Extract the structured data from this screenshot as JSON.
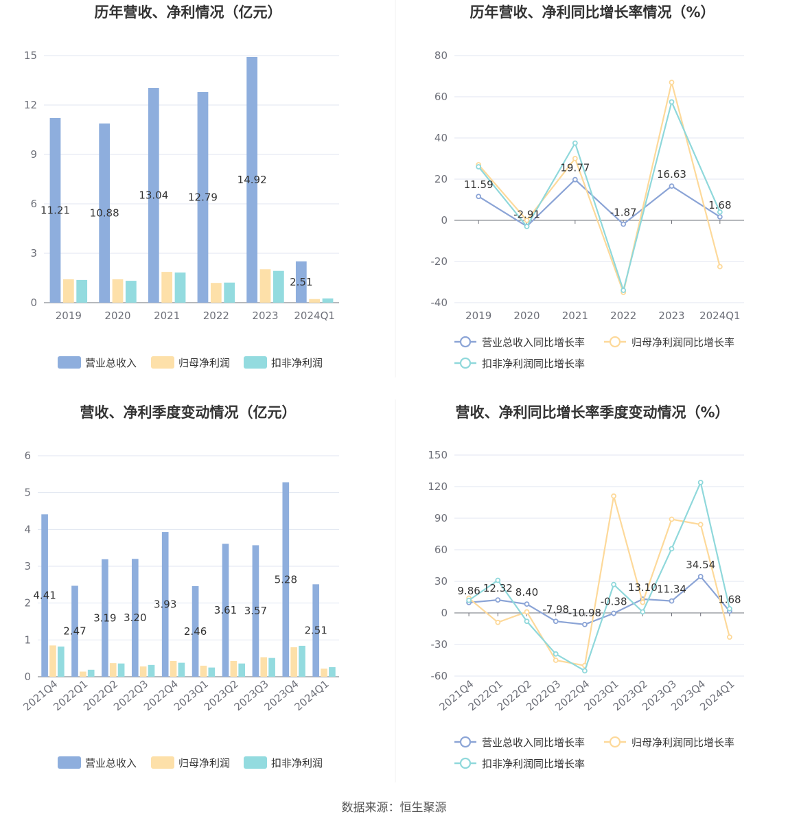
{
  "colors": {
    "revenue": "#8eaedd",
    "netprofit": "#fde0a9",
    "deducted": "#93dbdf",
    "revenue_line": "#8ba4d6",
    "netprofit_line": "#fdd99a",
    "deducted_line": "#8fd8db",
    "grid": "#e0e6f1",
    "axis": "#6e7079"
  },
  "source": "数据来源：恒生聚源",
  "chart_data": [
    {
      "type": "bar",
      "title": "历年营收、净利情况（亿元）",
      "categories": [
        "2019",
        "2020",
        "2021",
        "2022",
        "2023",
        "2024Q1"
      ],
      "ylim": [
        0,
        15
      ],
      "yticks": [
        0,
        3,
        6,
        9,
        12,
        15
      ],
      "grid": true,
      "legend_position": "bottom",
      "series": [
        {
          "name": "营业总收入",
          "values": [
            11.21,
            10.88,
            13.04,
            12.79,
            14.92,
            2.51
          ],
          "labels": [
            "11.21",
            "10.88",
            "13.04",
            "12.79",
            "14.92",
            "2.51"
          ]
        },
        {
          "name": "归母净利润",
          "values": [
            1.42,
            1.42,
            1.87,
            1.2,
            2.03,
            0.22
          ]
        },
        {
          "name": "扣非净利润",
          "values": [
            1.38,
            1.33,
            1.83,
            1.22,
            1.93,
            0.26
          ]
        }
      ]
    },
    {
      "type": "line",
      "title": "历年营收、净利同比增长率情况（%）",
      "categories": [
        "2019",
        "2020",
        "2021",
        "2022",
        "2023",
        "2024Q1"
      ],
      "ylim": [
        -40,
        80
      ],
      "yticks": [
        -40,
        -20,
        0,
        20,
        40,
        60,
        80
      ],
      "grid": true,
      "legend_position": "bottom",
      "series": [
        {
          "name": "营业总收入同比增长率",
          "values": [
            11.59,
            -2.91,
            19.77,
            -1.87,
            16.63,
            1.68
          ],
          "labels": [
            "11.59",
            "-2.91",
            "19.77",
            "-1.87",
            "16.63",
            "1.68"
          ]
        },
        {
          "name": "归母净利润同比增长率",
          "values": [
            27,
            0,
            30,
            -35,
            67,
            -22.5
          ]
        },
        {
          "name": "扣非净利润同比增长率",
          "values": [
            26,
            -3,
            37.5,
            -34,
            57.5,
            4
          ]
        }
      ]
    },
    {
      "type": "bar",
      "title": "营收、净利季度变动情况（亿元）",
      "categories": [
        "2021Q4",
        "2022Q1",
        "2022Q2",
        "2022Q3",
        "2022Q4",
        "2023Q1",
        "2023Q2",
        "2023Q3",
        "2023Q4",
        "2024Q1"
      ],
      "ylim": [
        0,
        6
      ],
      "yticks": [
        0,
        1,
        2,
        3,
        4,
        5,
        6
      ],
      "grid": true,
      "legend_position": "bottom",
      "series": [
        {
          "name": "营业总收入",
          "values": [
            4.41,
            2.47,
            3.19,
            3.2,
            3.93,
            2.46,
            3.61,
            3.57,
            5.28,
            2.51
          ],
          "labels": [
            "4.41",
            "2.47",
            "3.19",
            "3.20",
            "3.93",
            "2.46",
            "3.61",
            "3.57",
            "5.28",
            "2.51"
          ]
        },
        {
          "name": "归母净利润",
          "values": [
            0.85,
            0.14,
            0.37,
            0.28,
            0.43,
            0.3,
            0.43,
            0.53,
            0.8,
            0.22
          ]
        },
        {
          "name": "扣非净利润",
          "values": [
            0.82,
            0.19,
            0.36,
            0.32,
            0.38,
            0.25,
            0.36,
            0.51,
            0.84,
            0.26
          ]
        }
      ]
    },
    {
      "type": "line",
      "title": "营收、净利同比增长率季度变动情况（%）",
      "categories": [
        "2021Q4",
        "2022Q1",
        "2022Q2",
        "2022Q3",
        "2022Q4",
        "2023Q1",
        "2023Q2",
        "2023Q3",
        "2023Q4",
        "2024Q1"
      ],
      "ylim": [
        -60,
        150
      ],
      "yticks": [
        -60,
        -30,
        0,
        30,
        60,
        90,
        120,
        150
      ],
      "grid": true,
      "legend_position": "bottom",
      "series": [
        {
          "name": "营业总收入同比增长率",
          "values": [
            9.86,
            12.32,
            8.4,
            -7.98,
            -10.98,
            -0.38,
            13.1,
            11.34,
            34.54,
            1.68
          ],
          "labels": [
            "9.86",
            "12.32",
            "8.40",
            "-7.98",
            "-10.98",
            "-0.38",
            "13.10",
            "11.34",
            "34.54",
            "1.68"
          ]
        },
        {
          "name": "归母净利润同比增长率",
          "values": [
            14,
            -9,
            1,
            -45,
            -50,
            111,
            10,
            89,
            84,
            -23
          ]
        },
        {
          "name": "扣非净利润同比增长率",
          "values": [
            12,
            31,
            -8,
            -39,
            -55,
            27,
            1,
            61,
            124,
            4
          ]
        }
      ]
    }
  ]
}
